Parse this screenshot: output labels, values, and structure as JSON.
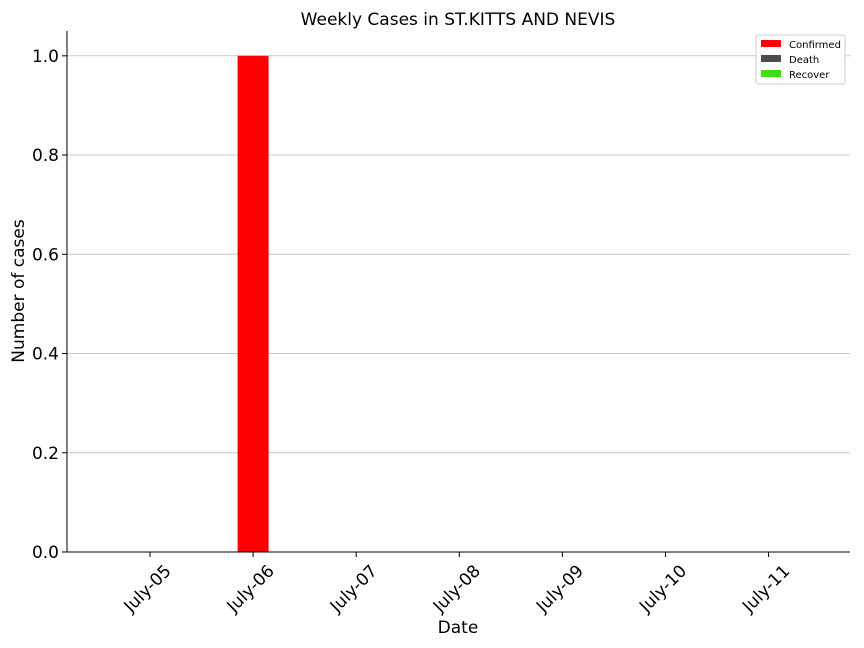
{
  "chart_data": {
    "type": "bar",
    "title": "Weekly Cases in ST.KITTS AND NEVIS",
    "xlabel": "Date",
    "ylabel": "Number of cases",
    "categories": [
      "July-05",
      "July-06",
      "July-07",
      "July-08",
      "July-09",
      "July-10",
      "July-11"
    ],
    "series": [
      {
        "name": "Confirmed",
        "color": "#ff0000",
        "values": [
          0,
          1,
          0,
          0,
          0,
          0,
          0
        ]
      },
      {
        "name": "Death",
        "color": "#4d4d4d",
        "values": [
          0,
          0,
          0,
          0,
          0,
          0,
          0
        ]
      },
      {
        "name": "Recover",
        "color": "#44dd11",
        "values": [
          0,
          0,
          0,
          0,
          0,
          0,
          0
        ]
      }
    ],
    "ylim": [
      0,
      1.05
    ],
    "yticks": [
      "0.0",
      "0.2",
      "0.4",
      "0.6",
      "0.8",
      "1.0"
    ],
    "grid": "horizontal",
    "legend_position": "top-right"
  }
}
